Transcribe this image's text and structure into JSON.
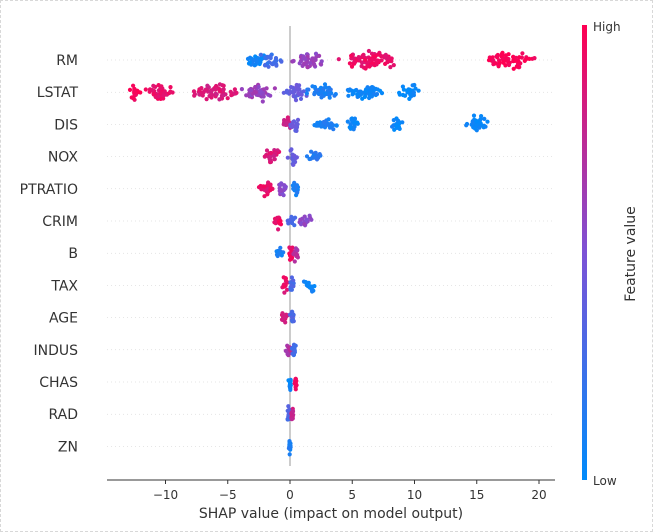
{
  "chart_data": {
    "type": "scatter",
    "subtype": "shap-beeswarm",
    "xlabel": "SHAP value (impact on model output)",
    "xlim": [
      -14.5,
      21
    ],
    "xticks": [
      -10,
      -5,
      0,
      5,
      10,
      15,
      20
    ],
    "grid": false,
    "colorbar": {
      "label": "Feature value",
      "high_label": "High",
      "low_label": "Low",
      "high_color": "#ff0052",
      "low_color": "#008bfb"
    },
    "features": [
      {
        "name": "RM",
        "min": -3.6,
        "max": 19.8,
        "clusters": [
          {
            "x": -2.8,
            "w": 1.0,
            "v": 0.05
          },
          {
            "x": -1.5,
            "w": 1.0,
            "v": 0.25
          },
          {
            "x": 1.5,
            "w": 1.5,
            "v": 0.6
          },
          {
            "x": 6.5,
            "w": 3.0,
            "v": 0.92
          },
          {
            "x": 17.5,
            "w": 2.4,
            "v": 0.98
          }
        ]
      },
      {
        "name": "LSTAT",
        "min": -13.2,
        "max": 10.5,
        "clusters": [
          {
            "x": -12.5,
            "w": 0.6,
            "v": 0.98
          },
          {
            "x": -10.5,
            "w": 1.5,
            "v": 0.92
          },
          {
            "x": -6.0,
            "w": 2.5,
            "v": 0.85
          },
          {
            "x": -2.5,
            "w": 1.6,
            "v": 0.6
          },
          {
            "x": 0.5,
            "w": 1.2,
            "v": 0.4
          },
          {
            "x": 2.5,
            "w": 1.5,
            "v": 0.12
          },
          {
            "x": 6.0,
            "w": 2.0,
            "v": 0.05
          },
          {
            "x": 9.5,
            "w": 1.0,
            "v": 0.02
          }
        ]
      },
      {
        "name": "DIS",
        "min": -0.6,
        "max": 16.2,
        "clusters": [
          {
            "x": -0.2,
            "w": 0.5,
            "v": 0.8
          },
          {
            "x": 0.4,
            "w": 0.6,
            "v": 0.4
          },
          {
            "x": 2.8,
            "w": 1.2,
            "v": 0.1
          },
          {
            "x": 5.0,
            "w": 0.6,
            "v": 0.05
          },
          {
            "x": 8.6,
            "w": 0.5,
            "v": 0.05
          },
          {
            "x": 15.0,
            "w": 1.2,
            "v": 0.02
          }
        ]
      },
      {
        "name": "NOX",
        "min": -3.0,
        "max": 2.8,
        "clusters": [
          {
            "x": -1.5,
            "w": 1.0,
            "v": 0.85
          },
          {
            "x": 0.2,
            "w": 0.6,
            "v": 0.4
          },
          {
            "x": 1.8,
            "w": 0.8,
            "v": 0.15
          }
        ]
      },
      {
        "name": "PTRATIO",
        "min": -2.8,
        "max": 1.2,
        "clusters": [
          {
            "x": -1.8,
            "w": 0.8,
            "v": 0.9
          },
          {
            "x": -0.6,
            "w": 0.5,
            "v": 0.55
          },
          {
            "x": 0.4,
            "w": 0.5,
            "v": 0.1
          }
        ]
      },
      {
        "name": "CRIM",
        "min": -1.6,
        "max": 2.1,
        "clusters": [
          {
            "x": -1.0,
            "w": 0.5,
            "v": 0.92
          },
          {
            "x": 0.1,
            "w": 0.5,
            "v": 0.3
          },
          {
            "x": 1.2,
            "w": 0.7,
            "v": 0.55
          }
        ]
      },
      {
        "name": "B",
        "min": -1.3,
        "max": 0.9,
        "clusters": [
          {
            "x": -0.8,
            "w": 0.4,
            "v": 0.1
          },
          {
            "x": 0.1,
            "w": 0.3,
            "v": 0.95
          },
          {
            "x": 0.5,
            "w": 0.3,
            "v": 0.7
          }
        ]
      },
      {
        "name": "TAX",
        "min": -0.9,
        "max": 2.4,
        "clusters": [
          {
            "x": -0.4,
            "w": 0.4,
            "v": 0.9
          },
          {
            "x": 0.2,
            "w": 0.3,
            "v": 0.3
          },
          {
            "x": 1.6,
            "w": 0.6,
            "v": 0.05
          }
        ]
      },
      {
        "name": "AGE",
        "min": -1.0,
        "max": 0.9,
        "clusters": [
          {
            "x": -0.5,
            "w": 0.4,
            "v": 0.85
          },
          {
            "x": 0.2,
            "w": 0.4,
            "v": 0.3
          }
        ]
      },
      {
        "name": "INDUS",
        "min": -0.5,
        "max": 0.6,
        "clusters": [
          {
            "x": -0.1,
            "w": 0.3,
            "v": 0.7
          },
          {
            "x": 0.3,
            "w": 0.2,
            "v": 0.25
          }
        ]
      },
      {
        "name": "CHAS",
        "min": -0.2,
        "max": 0.6,
        "clusters": [
          {
            "x": 0.0,
            "w": 0.15,
            "v": 0.05
          },
          {
            "x": 0.45,
            "w": 0.1,
            "v": 0.98
          }
        ]
      },
      {
        "name": "RAD",
        "min": -0.4,
        "max": 0.4,
        "clusters": [
          {
            "x": -0.1,
            "w": 0.2,
            "v": 0.3
          },
          {
            "x": 0.2,
            "w": 0.15,
            "v": 0.8
          }
        ]
      },
      {
        "name": "ZN",
        "min": -0.2,
        "max": 0.2,
        "clusters": [
          {
            "x": 0.0,
            "w": 0.1,
            "v": 0.1
          }
        ]
      }
    ]
  }
}
